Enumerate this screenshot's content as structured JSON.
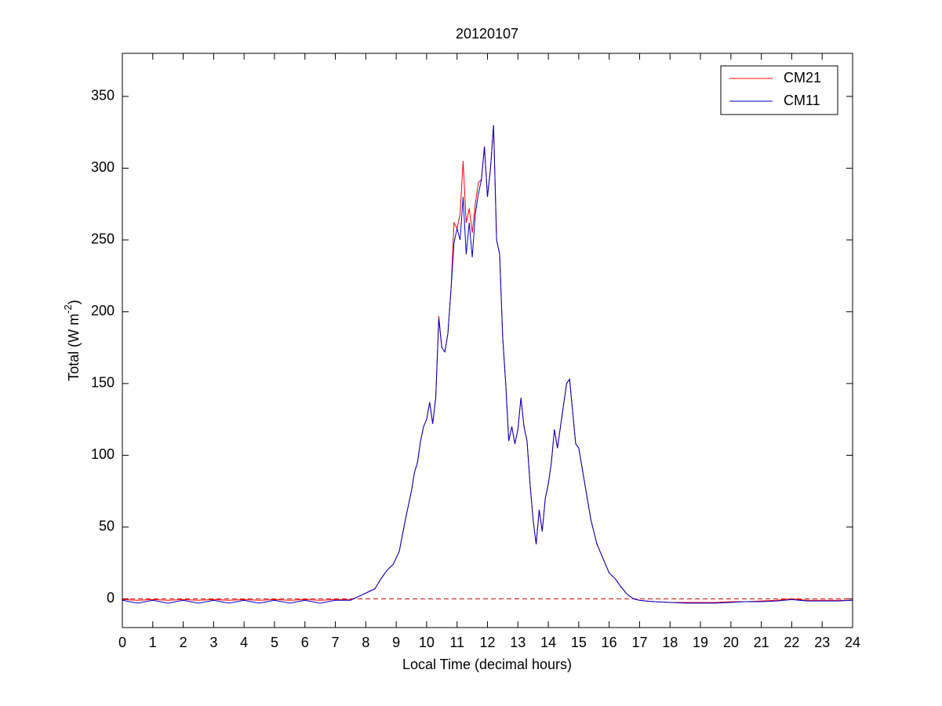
{
  "chart_data": {
    "type": "line",
    "title": "20120107",
    "xlabel": "Local Time (decimal hours)",
    "ylabel": {
      "text": "Total (W m",
      "sup": "-2",
      "end": ")"
    },
    "xlim": [
      0,
      24
    ],
    "ylim": [
      -20,
      380
    ],
    "xticks": [
      0,
      1,
      2,
      3,
      4,
      5,
      6,
      7,
      8,
      9,
      10,
      11,
      12,
      13,
      14,
      15,
      16,
      17,
      18,
      19,
      20,
      21,
      22,
      23,
      24
    ],
    "yticks": [
      0,
      50,
      100,
      150,
      200,
      250,
      300,
      350
    ],
    "grid": false,
    "legend": "northeast",
    "reference_line": {
      "value": 0,
      "color": "#cc0000",
      "style": "dashed"
    },
    "x": [
      0,
      0.5,
      1,
      1.5,
      2,
      2.5,
      3,
      3.5,
      4,
      4.5,
      5,
      5.5,
      6,
      6.5,
      7,
      7.5,
      7.7,
      7.9,
      8.1,
      8.3,
      8.5,
      8.7,
      8.9,
      9.1,
      9.3,
      9.5,
      9.6,
      9.7,
      9.8,
      9.9,
      10.0,
      10.1,
      10.2,
      10.3,
      10.4,
      10.5,
      10.6,
      10.7,
      10.8,
      10.9,
      11.0,
      11.1,
      11.2,
      11.3,
      11.4,
      11.5,
      11.6,
      11.7,
      11.8,
      11.9,
      12.0,
      12.1,
      12.2,
      12.3,
      12.4,
      12.5,
      12.6,
      12.7,
      12.8,
      12.9,
      13.0,
      13.1,
      13.2,
      13.3,
      13.4,
      13.5,
      13.6,
      13.7,
      13.8,
      13.9,
      14.0,
      14.1,
      14.2,
      14.3,
      14.4,
      14.5,
      14.6,
      14.7,
      14.8,
      14.9,
      15.0,
      15.2,
      15.4,
      15.6,
      15.8,
      16.0,
      16.2,
      16.4,
      16.6,
      16.8,
      17.0,
      17.2,
      17.5,
      18,
      18.5,
      19,
      19.5,
      20,
      20.5,
      21,
      21.5,
      22,
      22.5,
      23,
      23.5,
      24
    ],
    "series": [
      {
        "name": "CM21",
        "color": "#ff0000",
        "values": [
          -0.5,
          -1,
          -0.5,
          -1,
          -0.5,
          -1,
          -0.5,
          -1,
          -0.5,
          -1,
          -0.5,
          -1,
          -0.5,
          -1,
          -0.5,
          -0.5,
          1,
          3,
          5,
          7,
          14,
          20,
          24,
          33,
          55,
          75,
          88,
          95,
          110,
          120,
          125,
          137,
          122,
          140,
          197,
          175,
          172,
          185,
          215,
          262,
          258,
          268,
          305,
          262,
          272,
          255,
          275,
          290,
          292,
          315,
          280,
          300,
          330,
          250,
          240,
          182,
          150,
          110,
          120,
          108,
          118,
          140,
          120,
          110,
          80,
          55,
          38,
          62,
          47,
          70,
          80,
          95,
          118,
          105,
          120,
          135,
          150,
          153,
          130,
          108,
          105,
          80,
          55,
          38,
          28,
          18,
          14,
          8,
          3,
          0,
          -1,
          -1.5,
          -2,
          -2.5,
          -2.5,
          -2.5,
          -2.5,
          -2,
          -2,
          -1.5,
          -1,
          0,
          -1,
          -1,
          -1,
          -1
        ]
      },
      {
        "name": "CM11",
        "color": "#0000cc",
        "values": [
          -1,
          -3,
          -1,
          -3,
          -1,
          -3,
          -1,
          -3,
          -1,
          -3,
          -1,
          -3,
          -1,
          -3,
          -1,
          -1,
          1,
          3,
          5,
          7,
          14,
          20,
          24,
          33,
          55,
          75,
          88,
          95,
          110,
          120,
          125,
          137,
          122,
          140,
          195,
          175,
          172,
          185,
          215,
          248,
          258,
          250,
          280,
          240,
          262,
          238,
          268,
          282,
          292,
          315,
          280,
          300,
          330,
          250,
          240,
          182,
          150,
          110,
          120,
          108,
          118,
          140,
          120,
          110,
          80,
          55,
          38,
          62,
          47,
          70,
          80,
          95,
          118,
          105,
          120,
          135,
          150,
          153,
          130,
          108,
          105,
          80,
          55,
          38,
          28,
          18,
          14,
          8,
          3,
          0,
          -1,
          -1.5,
          -2,
          -2.5,
          -3,
          -3,
          -3,
          -2.5,
          -2,
          -2,
          -1.5,
          -0.5,
          -1.5,
          -1.5,
          -1.5,
          -1
        ]
      }
    ]
  }
}
